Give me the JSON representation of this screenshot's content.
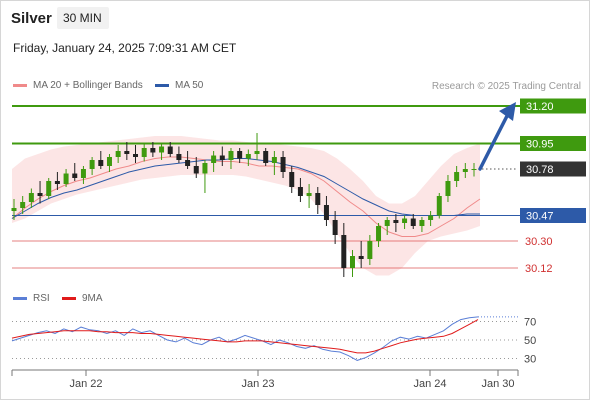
{
  "header": {
    "instrument": "Silver",
    "timeframe": "30 MIN",
    "datetime": "Friday, January 24, 2025 7:09:31 AM CET"
  },
  "legend": {
    "ma20": {
      "label": "MA 20 + Bollinger Bands",
      "color": "#f08a8a"
    },
    "ma50": {
      "label": "MA 50",
      "color": "#2d5aa8"
    },
    "rsi": {
      "label": "RSI",
      "color": "#5b7fd6"
    },
    "ma9": {
      "label": "9MA",
      "color": "#e01b1b"
    }
  },
  "copyright": "Research © 2025 Trading Central",
  "chart_data": [
    {
      "type": "candlestick",
      "title": "",
      "ylim": [
        29.93,
        31.3
      ],
      "x_ticks": [
        "Jan 22",
        "Jan 23",
        "Jan 24",
        "Jan 30"
      ],
      "levels": [
        {
          "value": 31.2,
          "label": "31.20",
          "kind": "target",
          "color": "#3f9a0f"
        },
        {
          "value": 30.95,
          "label": "30.95",
          "kind": "resistance",
          "color": "#3f9a0f"
        },
        {
          "value": 30.78,
          "label": "30.78",
          "kind": "last",
          "color": "#333333"
        },
        {
          "value": 30.47,
          "label": "30.47",
          "kind": "pivot",
          "color": "#2d5aa8"
        },
        {
          "value": 30.3,
          "label": "30.30",
          "kind": "support",
          "color": "#e06060"
        },
        {
          "value": 30.12,
          "label": "30.12",
          "kind": "support",
          "color": "#e06060"
        }
      ],
      "series": [
        {
          "name": "MA 20",
          "values": [
            30.45,
            30.52,
            30.58,
            30.63,
            30.67,
            30.7,
            30.72,
            30.75,
            30.78,
            30.8,
            30.83,
            30.85,
            30.86,
            30.86,
            30.85,
            30.84,
            30.83,
            30.83,
            30.82,
            30.8,
            30.8,
            30.79,
            30.78,
            30.75,
            30.7,
            30.63,
            30.56,
            30.5,
            30.42,
            30.36,
            30.33,
            30.33,
            30.35,
            30.4,
            30.45,
            30.52,
            30.58
          ]
        },
        {
          "name": "MA 50",
          "values": [
            30.45,
            30.5,
            30.55,
            30.59,
            30.62,
            30.64,
            30.67,
            30.7,
            30.73,
            30.76,
            30.78,
            30.8,
            30.81,
            30.82,
            30.83,
            30.84,
            30.84,
            30.85,
            30.85,
            30.84,
            30.83,
            30.81,
            30.79,
            30.76,
            30.73,
            30.68,
            30.63,
            30.58,
            30.54,
            30.5,
            30.48,
            30.47,
            30.47,
            30.47,
            30.47,
            30.48,
            30.48
          ]
        },
        {
          "name": "Bollinger Upper",
          "values": [
            30.78,
            30.85,
            30.88,
            30.91,
            30.93,
            30.94,
            30.95,
            30.96,
            30.97,
            30.98,
            30.99,
            31.0,
            31.0,
            31.0,
            30.99,
            30.98,
            30.97,
            30.97,
            30.96,
            30.95,
            30.95,
            30.94,
            30.93,
            30.92,
            30.9,
            30.85,
            30.78,
            30.7,
            30.6,
            30.55,
            30.55,
            30.6,
            30.7,
            30.8,
            30.88,
            30.92,
            30.95
          ]
        },
        {
          "name": "Bollinger Lower",
          "values": [
            30.42,
            30.45,
            30.5,
            30.55,
            30.58,
            30.61,
            30.63,
            30.65,
            30.67,
            30.69,
            30.71,
            30.72,
            30.73,
            30.74,
            30.74,
            30.74,
            30.74,
            30.74,
            30.73,
            30.71,
            30.69,
            30.67,
            30.64,
            30.58,
            30.48,
            30.35,
            30.22,
            30.12,
            30.07,
            30.07,
            30.12,
            30.22,
            30.3,
            30.33,
            30.35,
            30.37,
            30.4
          ]
        }
      ],
      "ohlc": [
        [
          30.5,
          30.58,
          30.44,
          30.52
        ],
        [
          30.52,
          30.6,
          30.48,
          30.56
        ],
        [
          30.56,
          30.65,
          30.52,
          30.62
        ],
        [
          30.62,
          30.7,
          30.55,
          30.6
        ],
        [
          30.6,
          30.72,
          30.58,
          30.7
        ],
        [
          30.7,
          30.76,
          30.64,
          30.68
        ],
        [
          30.68,
          30.78,
          30.66,
          30.75
        ],
        [
          30.75,
          30.82,
          30.7,
          30.72
        ],
        [
          30.72,
          30.8,
          30.68,
          30.78
        ],
        [
          30.78,
          30.86,
          30.74,
          30.84
        ],
        [
          30.84,
          30.9,
          30.78,
          30.8
        ],
        [
          30.8,
          30.88,
          30.76,
          30.86
        ],
        [
          30.86,
          30.94,
          30.82,
          30.9
        ],
        [
          30.9,
          30.96,
          30.84,
          30.88
        ],
        [
          30.88,
          30.94,
          30.82,
          30.86
        ],
        [
          30.86,
          30.95,
          30.83,
          30.92
        ],
        [
          30.92,
          30.96,
          30.86,
          30.89
        ],
        [
          30.89,
          30.95,
          30.84,
          30.93
        ],
        [
          30.93,
          30.96,
          30.86,
          30.88
        ],
        [
          30.88,
          30.93,
          30.82,
          30.84
        ],
        [
          30.84,
          30.9,
          30.78,
          30.8
        ],
        [
          30.8,
          30.86,
          30.72,
          30.75
        ],
        [
          30.75,
          30.84,
          30.62,
          30.82
        ],
        [
          30.82,
          30.9,
          30.76,
          30.87
        ],
        [
          30.87,
          30.93,
          30.8,
          30.84
        ],
        [
          30.84,
          30.92,
          30.78,
          30.9
        ],
        [
          30.9,
          30.92,
          30.82,
          30.85
        ],
        [
          30.85,
          30.91,
          30.8,
          30.88
        ],
        [
          30.88,
          31.02,
          30.84,
          30.9
        ],
        [
          30.9,
          30.92,
          30.8,
          30.82
        ],
        [
          30.82,
          30.9,
          30.74,
          30.86
        ],
        [
          30.86,
          30.9,
          30.72,
          30.76
        ],
        [
          30.76,
          30.8,
          30.62,
          30.66
        ],
        [
          30.66,
          30.72,
          30.56,
          30.6
        ],
        [
          30.6,
          30.68,
          30.52,
          30.62
        ],
        [
          30.62,
          30.66,
          30.48,
          30.54
        ],
        [
          30.54,
          30.6,
          30.4,
          30.44
        ],
        [
          30.44,
          30.5,
          30.28,
          30.34
        ],
        [
          30.34,
          30.42,
          30.06,
          30.12
        ],
        [
          30.12,
          30.24,
          30.06,
          30.2
        ],
        [
          30.2,
          30.3,
          30.12,
          30.18
        ],
        [
          30.18,
          30.34,
          30.14,
          30.3
        ],
        [
          30.3,
          30.42,
          30.26,
          30.4
        ],
        [
          30.4,
          30.46,
          30.34,
          30.44
        ],
        [
          30.44,
          30.48,
          30.36,
          30.42
        ],
        [
          30.42,
          30.47,
          30.38,
          30.45
        ],
        [
          30.45,
          30.48,
          30.38,
          30.4
        ],
        [
          30.4,
          30.46,
          30.36,
          30.44
        ],
        [
          30.44,
          30.5,
          30.4,
          30.47
        ],
        [
          30.47,
          30.62,
          30.45,
          30.6
        ],
        [
          30.6,
          30.74,
          30.56,
          30.7
        ],
        [
          30.7,
          30.8,
          30.66,
          30.76
        ],
        [
          30.76,
          30.82,
          30.72,
          30.78
        ],
        [
          30.78,
          30.82,
          30.73,
          30.78
        ]
      ],
      "forecast": {
        "from": 30.78,
        "to": 31.2
      }
    },
    {
      "type": "line",
      "title": "",
      "ylim": [
        20,
        85
      ],
      "y_ticks": [
        70,
        50,
        30
      ],
      "series": [
        {
          "name": "RSI",
          "values": [
            49,
            52,
            55,
            58,
            60,
            57,
            62,
            59,
            64,
            61,
            60,
            57,
            60,
            55,
            62,
            58,
            60,
            55,
            50,
            48,
            52,
            47,
            45,
            50,
            53,
            48,
            51,
            55,
            52,
            49,
            45,
            50,
            47,
            43,
            41,
            44,
            40,
            38,
            37,
            33,
            28,
            31,
            36,
            42,
            49,
            53,
            51,
            54,
            52,
            56,
            60,
            67,
            72,
            74,
            75
          ]
        },
        {
          "name": "9MA",
          "values": [
            52,
            54,
            56,
            57,
            58,
            59,
            60,
            60,
            60,
            60,
            59,
            59,
            58,
            58,
            58,
            57,
            57,
            56,
            55,
            54,
            53,
            52,
            51,
            50,
            49,
            48,
            48,
            49,
            49,
            49,
            48,
            47,
            46,
            45,
            44,
            43,
            42,
            41,
            40,
            38,
            36,
            36,
            38,
            41,
            44,
            47,
            49,
            51,
            52,
            53,
            54,
            57,
            62,
            67,
            72
          ]
        }
      ]
    }
  ]
}
